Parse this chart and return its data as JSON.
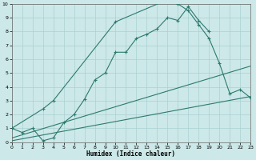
{
  "xlabel": "Humidex (Indice chaleur)",
  "background_color": "#cce8e8",
  "grid_color": "#aad0d0",
  "line_color": "#2d7a6e",
  "xlim": [
    0,
    23
  ],
  "ylim": [
    0,
    10
  ],
  "curve1_x": [
    0,
    1,
    2,
    3,
    4,
    5,
    6,
    7,
    8,
    9,
    10,
    11,
    12,
    13,
    14,
    15,
    16,
    17,
    18,
    19
  ],
  "curve1_y": [
    1.0,
    0.7,
    1.0,
    0.1,
    0.3,
    1.4,
    2.0,
    3.1,
    4.5,
    5.0,
    6.5,
    6.5,
    7.5,
    7.8,
    8.2,
    9.0,
    8.8,
    9.8,
    8.8,
    8.0
  ],
  "curve2_x": [
    0,
    3,
    4,
    10,
    15,
    16,
    17,
    18,
    19,
    20,
    21,
    22,
    23
  ],
  "curve2_y": [
    1.0,
    2.4,
    3.0,
    8.7,
    10.3,
    10.0,
    9.5,
    8.5,
    7.5,
    5.7,
    3.5,
    3.8,
    3.2
  ],
  "curve3_x": [
    0,
    23
  ],
  "curve3_y": [
    0.1,
    3.3
  ],
  "curve4_x": [
    0,
    23
  ],
  "curve4_y": [
    0.3,
    5.5
  ]
}
